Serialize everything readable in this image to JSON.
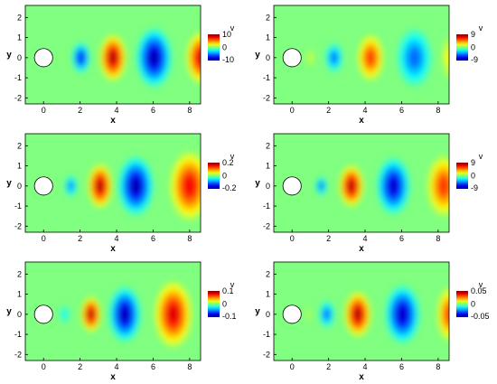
{
  "chart_data": [
    {
      "type": "heatmap",
      "xlabel": "x",
      "ylabel": "y",
      "xlim": [
        -1,
        8.6
      ],
      "ylim": [
        -2.3,
        2.6
      ],
      "x_ticks": [
        "0",
        "2",
        "4",
        "6",
        "8"
      ],
      "y_ticks": [
        "2",
        "1",
        "0",
        "-1",
        "-2"
      ],
      "colorbar": {
        "title": "v",
        "labels": [
          "10",
          "0",
          "-10"
        ],
        "range": [
          -10,
          10
        ]
      },
      "blobs": [
        {
          "x": 0.95,
          "y": 0.0,
          "value": 0.15,
          "rx": 0.22,
          "ry": 0.4
        },
        {
          "x": 2.05,
          "y": 0.0,
          "value": -8.5,
          "rx": 0.4,
          "ry": 0.62
        },
        {
          "x": 3.8,
          "y": 0.0,
          "value": 10.0,
          "rx": 0.6,
          "ry": 0.95
        },
        {
          "x": 6.05,
          "y": 0.0,
          "value": -10.0,
          "rx": 0.8,
          "ry": 1.2
        },
        {
          "x": 8.6,
          "y": 0.0,
          "value": 9.0,
          "rx": 0.65,
          "ry": 1.05
        }
      ]
    },
    {
      "type": "heatmap",
      "xlabel": "x",
      "ylabel": "y",
      "xlim": [
        -1,
        8.6
      ],
      "ylim": [
        -2.3,
        2.6
      ],
      "x_ticks": [
        "0",
        "2",
        "4",
        "6",
        "8"
      ],
      "y_ticks": [
        "2",
        "1",
        "0",
        "-1",
        "-2"
      ],
      "colorbar": {
        "title": "v",
        "labels": [
          "9",
          "0",
          "-9"
        ],
        "range": [
          -9,
          9
        ]
      },
      "blobs": [
        {
          "x": 1.0,
          "y": 0.0,
          "value": 1.5,
          "rx": 0.22,
          "ry": 0.4
        },
        {
          "x": 2.3,
          "y": 0.0,
          "value": -5.5,
          "rx": 0.4,
          "ry": 0.6
        },
        {
          "x": 4.3,
          "y": 0.0,
          "value": 6.5,
          "rx": 0.6,
          "ry": 0.95
        },
        {
          "x": 6.7,
          "y": 0.0,
          "value": -5.5,
          "rx": 0.8,
          "ry": 1.2
        },
        {
          "x": 8.6,
          "y": 0.0,
          "value": 2.5,
          "rx": 0.35,
          "ry": 0.9
        }
      ]
    },
    {
      "type": "heatmap",
      "xlabel": "x",
      "ylabel": "y",
      "xlim": [
        -1,
        8.6
      ],
      "ylim": [
        -2.3,
        2.6
      ],
      "x_ticks": [
        "0",
        "2",
        "4",
        "6",
        "8"
      ],
      "y_ticks": [
        "2",
        "1",
        "0",
        "-1",
        "-2"
      ],
      "colorbar": {
        "title": "v",
        "labels": [
          "0.2",
          "0",
          "-0.2"
        ],
        "range": [
          -0.2,
          0.2
        ]
      },
      "blobs": [
        {
          "x": 1.5,
          "y": 0.0,
          "value": -0.12,
          "rx": 0.28,
          "ry": 0.45
        },
        {
          "x": 3.1,
          "y": 0.0,
          "value": 0.2,
          "rx": 0.55,
          "ry": 0.9
        },
        {
          "x": 5.05,
          "y": 0.0,
          "value": -0.2,
          "rx": 0.8,
          "ry": 1.2
        },
        {
          "x": 8.0,
          "y": 0.0,
          "value": 0.17,
          "rx": 0.9,
          "ry": 1.4
        }
      ]
    },
    {
      "type": "heatmap",
      "xlabel": "x",
      "ylabel": "y",
      "xlim": [
        -1,
        8.6
      ],
      "ylim": [
        -2.3,
        2.6
      ],
      "x_ticks": [
        "0",
        "2",
        "4",
        "6",
        "8"
      ],
      "y_ticks": [
        "2",
        "1",
        "0",
        "-1",
        "-2"
      ],
      "colorbar": {
        "title": "v",
        "labels": [
          "9",
          "0",
          "-9"
        ],
        "range": [
          -9,
          9
        ]
      },
      "blobs": [
        {
          "x": 1.6,
          "y": 0.0,
          "value": -6.0,
          "rx": 0.25,
          "ry": 0.4
        },
        {
          "x": 3.25,
          "y": 0.0,
          "value": 9.0,
          "rx": 0.55,
          "ry": 0.85
        },
        {
          "x": 5.55,
          "y": 0.0,
          "value": -8.5,
          "rx": 0.75,
          "ry": 1.15
        },
        {
          "x": 8.3,
          "y": 0.0,
          "value": 6.5,
          "rx": 0.75,
          "ry": 1.25
        }
      ]
    },
    {
      "type": "heatmap",
      "xlabel": "x",
      "ylabel": "y",
      "xlim": [
        -1,
        8.6
      ],
      "ylim": [
        -2.3,
        2.6
      ],
      "x_ticks": [
        "0",
        "2",
        "4",
        "6",
        "8"
      ],
      "y_ticks": [
        "2",
        "1",
        "0",
        "-1",
        "-2"
      ],
      "colorbar": {
        "title": "v",
        "labels": [
          "0.1",
          "0",
          "-0.1"
        ],
        "range": [
          -0.1,
          0.1
        ]
      },
      "blobs": [
        {
          "x": 1.15,
          "y": 0.0,
          "value": -0.03,
          "rx": 0.25,
          "ry": 0.38
        },
        {
          "x": 2.6,
          "y": 0.0,
          "value": 0.1,
          "rx": 0.45,
          "ry": 0.72
        },
        {
          "x": 4.45,
          "y": 0.0,
          "value": -0.1,
          "rx": 0.72,
          "ry": 1.12
        },
        {
          "x": 7.1,
          "y": 0.0,
          "value": 0.09,
          "rx": 0.85,
          "ry": 1.35
        }
      ]
    },
    {
      "type": "heatmap",
      "xlabel": "x",
      "ylabel": "y",
      "xlim": [
        -1,
        8.6
      ],
      "ylim": [
        -2.3,
        2.6
      ],
      "x_ticks": [
        "0",
        "2",
        "4",
        "6",
        "8"
      ],
      "y_ticks": [
        "2",
        "1",
        "0",
        "-1",
        "-2"
      ],
      "colorbar": {
        "title": "v",
        "labels": [
          "0.05",
          "0",
          "-0.05"
        ],
        "range": [
          -0.05,
          0.05
        ]
      },
      "blobs": [
        {
          "x": 0.9,
          "y": 0.0,
          "value": 0.005,
          "rx": 0.2,
          "ry": 0.35
        },
        {
          "x": 1.9,
          "y": 0.0,
          "value": -0.032,
          "rx": 0.35,
          "ry": 0.55
        },
        {
          "x": 3.6,
          "y": 0.0,
          "value": 0.05,
          "rx": 0.6,
          "ry": 0.92
        },
        {
          "x": 6.05,
          "y": 0.0,
          "value": -0.048,
          "rx": 0.78,
          "ry": 1.18
        },
        {
          "x": 8.6,
          "y": 0.0,
          "value": 0.035,
          "rx": 0.55,
          "ry": 1.1
        }
      ]
    }
  ]
}
